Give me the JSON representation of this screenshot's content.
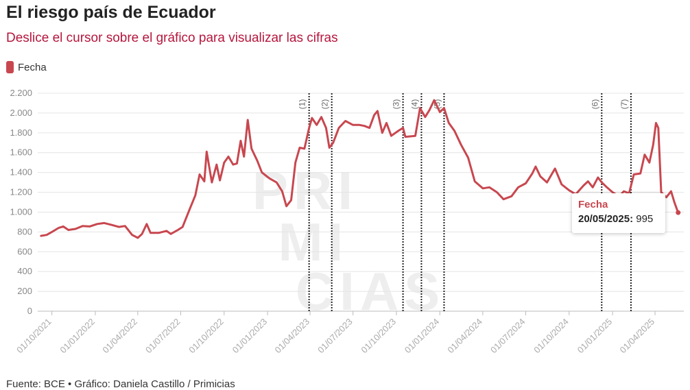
{
  "title": "El riesgo país de Ecuador",
  "subtitle": "Deslice el cursor sobre el gráfico para visualizar las cifras",
  "legend": {
    "label": "Fecha",
    "color": "#c8474f"
  },
  "source": "Fuente: BCE • Gráfico: Daniela Castillo / Primicias",
  "watermark": [
    "PRI",
    "MI",
    "CIAS"
  ],
  "tooltip": {
    "title": "Fecha",
    "date": "20/05/2025:",
    "value": "995"
  },
  "chart_data": {
    "type": "line",
    "ylim": [
      0,
      2200
    ],
    "y_ticks": [
      {
        "v": 0,
        "label": "0"
      },
      {
        "v": 200,
        "label": "200"
      },
      {
        "v": 400,
        "label": "400"
      },
      {
        "v": 600,
        "label": "600"
      },
      {
        "v": 800,
        "label": "800"
      },
      {
        "v": 1000,
        "label": "1.000"
      },
      {
        "v": 1200,
        "label": "1.200"
      },
      {
        "v": 1400,
        "label": "1.400"
      },
      {
        "v": 1600,
        "label": "1.600"
      },
      {
        "v": 1800,
        "label": "1.800"
      },
      {
        "v": 2000,
        "label": "2.000"
      },
      {
        "v": 2200,
        "label": "2.200"
      }
    ],
    "x_range": [
      "2021-09-01",
      "2025-06-01"
    ],
    "x_ticks": [
      {
        "date": "2021-10-01",
        "label": "01/10/2021"
      },
      {
        "date": "2022-01-01",
        "label": "01/01/2022"
      },
      {
        "date": "2022-04-01",
        "label": "01/04/2022"
      },
      {
        "date": "2022-07-01",
        "label": "01/07/2022"
      },
      {
        "date": "2022-10-01",
        "label": "01/10/2022"
      },
      {
        "date": "2023-01-01",
        "label": "01/01/2023"
      },
      {
        "date": "2023-04-01",
        "label": "01/04/2023"
      },
      {
        "date": "2023-07-01",
        "label": "01/07/2023"
      },
      {
        "date": "2023-10-01",
        "label": "01/10/2023"
      },
      {
        "date": "2024-01-01",
        "label": "01/01/2024"
      },
      {
        "date": "2024-04-01",
        "label": "01/04/2024"
      },
      {
        "date": "2024-07-01",
        "label": "01/07/2024"
      },
      {
        "date": "2024-10-01",
        "label": "01/10/2024"
      },
      {
        "date": "2025-01-01",
        "label": "01/01/2025"
      },
      {
        "date": "2025-04-01",
        "label": "01/04/2025"
      }
    ],
    "annotations": [
      {
        "date": "2023-03-30",
        "label": "(1)"
      },
      {
        "date": "2023-05-17",
        "label": "(2)"
      },
      {
        "date": "2023-10-15",
        "label": "(3)"
      },
      {
        "date": "2023-11-23",
        "label": "(4)"
      },
      {
        "date": "2024-01-10",
        "label": "(5)"
      },
      {
        "date": "2024-12-09",
        "label": "(6)"
      },
      {
        "date": "2025-02-09",
        "label": "(7)"
      }
    ],
    "series": [
      {
        "color": "#c8474f",
        "points": [
          [
            "2021-09-08",
            760
          ],
          [
            "2021-09-20",
            770
          ],
          [
            "2021-10-01",
            800
          ],
          [
            "2021-10-15",
            840
          ],
          [
            "2021-10-25",
            855
          ],
          [
            "2021-11-05",
            820
          ],
          [
            "2021-11-20",
            830
          ],
          [
            "2021-12-05",
            860
          ],
          [
            "2021-12-20",
            855
          ],
          [
            "2022-01-05",
            880
          ],
          [
            "2022-01-20",
            890
          ],
          [
            "2022-02-05",
            870
          ],
          [
            "2022-02-20",
            850
          ],
          [
            "2022-03-05",
            860
          ],
          [
            "2022-03-20",
            770
          ],
          [
            "2022-04-01",
            740
          ],
          [
            "2022-04-10",
            780
          ],
          [
            "2022-04-20",
            880
          ],
          [
            "2022-04-28",
            790
          ],
          [
            "2022-05-15",
            790
          ],
          [
            "2022-06-01",
            810
          ],
          [
            "2022-06-10",
            780
          ],
          [
            "2022-06-25",
            820
          ],
          [
            "2022-07-05",
            850
          ],
          [
            "2022-07-20",
            1030
          ],
          [
            "2022-08-01",
            1170
          ],
          [
            "2022-08-10",
            1380
          ],
          [
            "2022-08-20",
            1310
          ],
          [
            "2022-08-25",
            1610
          ],
          [
            "2022-09-05",
            1300
          ],
          [
            "2022-09-15",
            1480
          ],
          [
            "2022-09-22",
            1320
          ],
          [
            "2022-10-01",
            1500
          ],
          [
            "2022-10-10",
            1560
          ],
          [
            "2022-10-20",
            1480
          ],
          [
            "2022-10-28",
            1490
          ],
          [
            "2022-11-05",
            1720
          ],
          [
            "2022-11-12",
            1560
          ],
          [
            "2022-11-20",
            1930
          ],
          [
            "2022-11-28",
            1640
          ],
          [
            "2022-12-10",
            1520
          ],
          [
            "2022-12-20",
            1400
          ],
          [
            "2023-01-05",
            1340
          ],
          [
            "2023-01-20",
            1300
          ],
          [
            "2023-02-01",
            1210
          ],
          [
            "2023-02-10",
            1060
          ],
          [
            "2023-02-20",
            1120
          ],
          [
            "2023-03-01",
            1500
          ],
          [
            "2023-03-10",
            1650
          ],
          [
            "2023-03-20",
            1640
          ],
          [
            "2023-03-30",
            1850
          ],
          [
            "2023-04-05",
            1950
          ],
          [
            "2023-04-15",
            1880
          ],
          [
            "2023-04-25",
            1960
          ],
          [
            "2023-05-05",
            1850
          ],
          [
            "2023-05-12",
            1650
          ],
          [
            "2023-05-20",
            1700
          ],
          [
            "2023-06-01",
            1850
          ],
          [
            "2023-06-15",
            1920
          ],
          [
            "2023-07-01",
            1880
          ],
          [
            "2023-07-15",
            1880
          ],
          [
            "2023-07-25",
            1870
          ],
          [
            "2023-08-05",
            1850
          ],
          [
            "2023-08-15",
            1980
          ],
          [
            "2023-08-22",
            2020
          ],
          [
            "2023-09-01",
            1800
          ],
          [
            "2023-09-10",
            1900
          ],
          [
            "2023-09-20",
            1770
          ],
          [
            "2023-10-05",
            1820
          ],
          [
            "2023-10-15",
            1850
          ],
          [
            "2023-10-20",
            1760
          ],
          [
            "2023-11-10",
            1770
          ],
          [
            "2023-11-20",
            2050
          ],
          [
            "2023-12-01",
            1960
          ],
          [
            "2023-12-10",
            2030
          ],
          [
            "2023-12-20",
            2130
          ],
          [
            "2024-01-01",
            2010
          ],
          [
            "2024-01-10",
            2050
          ],
          [
            "2024-01-20",
            1900
          ],
          [
            "2024-02-01",
            1820
          ],
          [
            "2024-02-15",
            1680
          ],
          [
            "2024-03-01",
            1550
          ],
          [
            "2024-03-15",
            1310
          ],
          [
            "2024-04-01",
            1240
          ],
          [
            "2024-04-15",
            1250
          ],
          [
            "2024-05-01",
            1200
          ],
          [
            "2024-05-15",
            1130
          ],
          [
            "2024-06-01",
            1160
          ],
          [
            "2024-06-15",
            1250
          ],
          [
            "2024-07-01",
            1290
          ],
          [
            "2024-07-15",
            1390
          ],
          [
            "2024-07-22",
            1460
          ],
          [
            "2024-08-01",
            1360
          ],
          [
            "2024-08-15",
            1300
          ],
          [
            "2024-09-01",
            1440
          ],
          [
            "2024-09-15",
            1280
          ],
          [
            "2024-10-01",
            1220
          ],
          [
            "2024-10-15",
            1180
          ],
          [
            "2024-11-01",
            1270
          ],
          [
            "2024-11-10",
            1310
          ],
          [
            "2024-11-20",
            1250
          ],
          [
            "2024-12-01",
            1350
          ],
          [
            "2024-12-09",
            1300
          ],
          [
            "2024-12-20",
            1250
          ],
          [
            "2025-01-01",
            1200
          ],
          [
            "2025-01-15",
            1160
          ],
          [
            "2025-01-25",
            1210
          ],
          [
            "2025-02-05",
            1190
          ],
          [
            "2025-02-15",
            1380
          ],
          [
            "2025-03-01",
            1390
          ],
          [
            "2025-03-10",
            1580
          ],
          [
            "2025-03-20",
            1500
          ],
          [
            "2025-03-28",
            1680
          ],
          [
            "2025-04-03",
            1900
          ],
          [
            "2025-04-08",
            1850
          ],
          [
            "2025-04-14",
            1200
          ],
          [
            "2025-04-25",
            1150
          ],
          [
            "2025-05-05",
            1210
          ],
          [
            "2025-05-12",
            1100
          ],
          [
            "2025-05-20",
            995
          ]
        ]
      }
    ]
  }
}
